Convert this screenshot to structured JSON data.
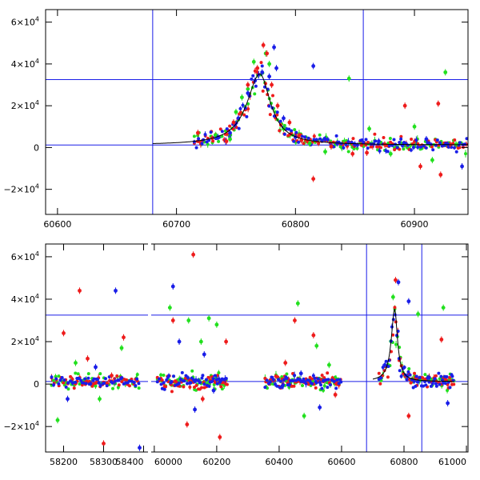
{
  "chart_data": [
    {
      "type": "scatter",
      "title": "",
      "xlabel": "",
      "ylabel": "",
      "xlim": [
        60590,
        60945
      ],
      "ylim": [
        -32000,
        66000
      ],
      "x_ticks": [
        {
          "value": 60600,
          "label": "60600"
        },
        {
          "value": 60700,
          "label": "60700"
        },
        {
          "value": 60800,
          "label": "60800"
        },
        {
          "value": 60900,
          "label": "60900"
        }
      ],
      "y_ticks": [
        {
          "value": 60000,
          "base": "6×10",
          "exp": "4"
        },
        {
          "value": 40000,
          "base": "4×10",
          "exp": "4"
        },
        {
          "value": 20000,
          "base": "2×10",
          "exp": "4"
        },
        {
          "value": 0,
          "base": "0",
          "exp": ""
        },
        {
          "value": -20000,
          "base": "−2×10",
          "exp": "4"
        }
      ],
      "reference_lines": {
        "horizontal": [
          32500,
          1200
        ],
        "vertical": [
          60680,
          60857
        ]
      },
      "model_curve": {
        "t0": 60770,
        "peak": 34000,
        "rise_tau": 13,
        "decay_tau": 11,
        "baseline": 1200
      },
      "series": [
        {
          "name": "green",
          "color": "#22e01e",
          "points": [
            [
              60733,
              6000
            ],
            [
              60745,
              4000
            ],
            [
              60750,
              17000
            ],
            [
              60755,
              24000
            ],
            [
              60760,
              28000
            ],
            [
              60765,
              41000
            ],
            [
              60775,
              45000
            ],
            [
              60778,
              40000
            ],
            [
              60790,
              9000
            ],
            [
              60812,
              2000
            ],
            [
              60825,
              -2000
            ],
            [
              60845,
              33000
            ],
            [
              60862,
              9000
            ],
            [
              60880,
              -3000
            ],
            [
              60900,
              10000
            ],
            [
              60915,
              -6000
            ],
            [
              60926,
              36000
            ],
            [
              60935,
              1500
            ]
          ]
        },
        {
          "name": "red",
          "color": "#ee1c1c",
          "points": [
            [
              60718,
              7000
            ],
            [
              60730,
              4500
            ],
            [
              60742,
              3000
            ],
            [
              60748,
              12000
            ],
            [
              60760,
              30000
            ],
            [
              60768,
              38000
            ],
            [
              60773,
              49000
            ],
            [
              60776,
              45000
            ],
            [
              60780,
              30000
            ],
            [
              60785,
              20000
            ],
            [
              60795,
              12000
            ],
            [
              60805,
              3500
            ],
            [
              60815,
              -15000
            ],
            [
              60830,
              500
            ],
            [
              60848,
              -3000
            ],
            [
              60860,
              -2500
            ],
            [
              60875,
              1500
            ],
            [
              60892,
              20000
            ],
            [
              60905,
              -9000
            ],
            [
              60920,
              21000
            ],
            [
              60922,
              -13000
            ],
            [
              60930,
              1500
            ]
          ]
        },
        {
          "name": "blue",
          "color": "#1a1ee8",
          "points": [
            [
              60735,
              5000
            ],
            [
              60745,
              7000
            ],
            [
              60752,
              14000
            ],
            [
              60760,
              26000
            ],
            [
              60766,
              32000
            ],
            [
              60772,
              36000
            ],
            [
              60778,
              34000
            ],
            [
              60782,
              48000
            ],
            [
              60784,
              38000
            ],
            [
              60790,
              14000
            ],
            [
              60800,
              5000
            ],
            [
              60815,
              39000
            ],
            [
              60825,
              4000
            ],
            [
              60835,
              2000
            ],
            [
              60850,
              1500
            ],
            [
              60870,
              3000
            ],
            [
              60890,
              1000
            ],
            [
              60910,
              4000
            ],
            [
              60928,
              1500
            ],
            [
              60940,
              -9000
            ]
          ]
        }
      ]
    },
    {
      "type": "scatter",
      "title": "",
      "xlabel": "",
      "ylabel": "",
      "segments": [
        {
          "xlim": [
            58155,
            58415
          ],
          "x_ticks": [
            {
              "value": 58200,
              "label": "58200"
            },
            {
              "value": 58300,
              "label": "58300"
            },
            {
              "value": 58400,
              "label": "58400"
            }
          ]
        },
        {
          "xlim": [
            59985,
            61005
          ],
          "x_ticks": [
            {
              "value": 60000,
              "label": "60000"
            },
            {
              "value": 60200,
              "label": "60200"
            },
            {
              "value": 60400,
              "label": "60400"
            },
            {
              "value": 60600,
              "label": "60600"
            },
            {
              "value": 60800,
              "label": "60800"
            },
            {
              "value": 61000,
              "label": "61000"
            }
          ]
        }
      ],
      "ylim": [
        -32000,
        66000
      ],
      "y_ticks": [
        {
          "value": 60000,
          "base": "6×10",
          "exp": "4"
        },
        {
          "value": 40000,
          "base": "4×10",
          "exp": "4"
        },
        {
          "value": 20000,
          "base": "2×10",
          "exp": "4"
        },
        {
          "value": 0,
          "base": "0",
          "exp": ""
        },
        {
          "value": -20000,
          "base": "−2×10",
          "exp": "4"
        }
      ],
      "reference_lines": {
        "horizontal": [
          32500,
          1200
        ],
        "vertical": [
          60680,
          60857
        ]
      },
      "model_curve": {
        "t0": 60770,
        "peak": 34000,
        "rise_tau": 13,
        "decay_tau": 11,
        "baseline": 1200
      },
      "observing_seasons": [
        [
          58170,
          58390
        ],
        [
          60010,
          60235
        ],
        [
          60355,
          60600
        ],
        [
          60720,
          60960
        ]
      ],
      "series": [
        {
          "name": "green",
          "color": "#22e01e",
          "points": [
            [
              58185,
              -17000
            ],
            [
              58230,
              10000
            ],
            [
              58290,
              -7000
            ],
            [
              58345,
              17000
            ],
            [
              60050,
              36000
            ],
            [
              60110,
              30000
            ],
            [
              60150,
              20000
            ],
            [
              60175,
              31000
            ],
            [
              60200,
              28000
            ],
            [
              60460,
              38000
            ],
            [
              60480,
              -15000
            ],
            [
              60520,
              18000
            ],
            [
              60560,
              9000
            ],
            [
              60765,
              41000
            ],
            [
              60845,
              33000
            ],
            [
              60926,
              36000
            ]
          ]
        },
        {
          "name": "red",
          "color": "#ee1c1c",
          "points": [
            [
              58200,
              24000
            ],
            [
              58240,
              44000
            ],
            [
              58260,
              12000
            ],
            [
              58300,
              -28000
            ],
            [
              58320,
              4000
            ],
            [
              58350,
              22000
            ],
            [
              60060,
              30000
            ],
            [
              60105,
              -19000
            ],
            [
              60125,
              61000
            ],
            [
              60155,
              -7000
            ],
            [
              60210,
              -25000
            ],
            [
              60230,
              20000
            ],
            [
              60420,
              10000
            ],
            [
              60450,
              30000
            ],
            [
              60510,
              23000
            ],
            [
              60580,
              -5000
            ],
            [
              60773,
              49000
            ],
            [
              60815,
              -15000
            ],
            [
              60920,
              21000
            ]
          ]
        },
        {
          "name": "blue",
          "color": "#1a1ee8",
          "points": [
            [
              58210,
              -7000
            ],
            [
              58280,
              8000
            ],
            [
              58330,
              44000
            ],
            [
              58390,
              -30000
            ],
            [
              60060,
              46000
            ],
            [
              60080,
              20000
            ],
            [
              60130,
              -12000
            ],
            [
              60160,
              14000
            ],
            [
              60190,
              -3000
            ],
            [
              60410,
              -1000
            ],
            [
              60470,
              5000
            ],
            [
              60530,
              -11000
            ],
            [
              60782,
              48000
            ],
            [
              60815,
              39000
            ],
            [
              60880,
              3000
            ],
            [
              60940,
              -9000
            ]
          ]
        }
      ]
    }
  ]
}
